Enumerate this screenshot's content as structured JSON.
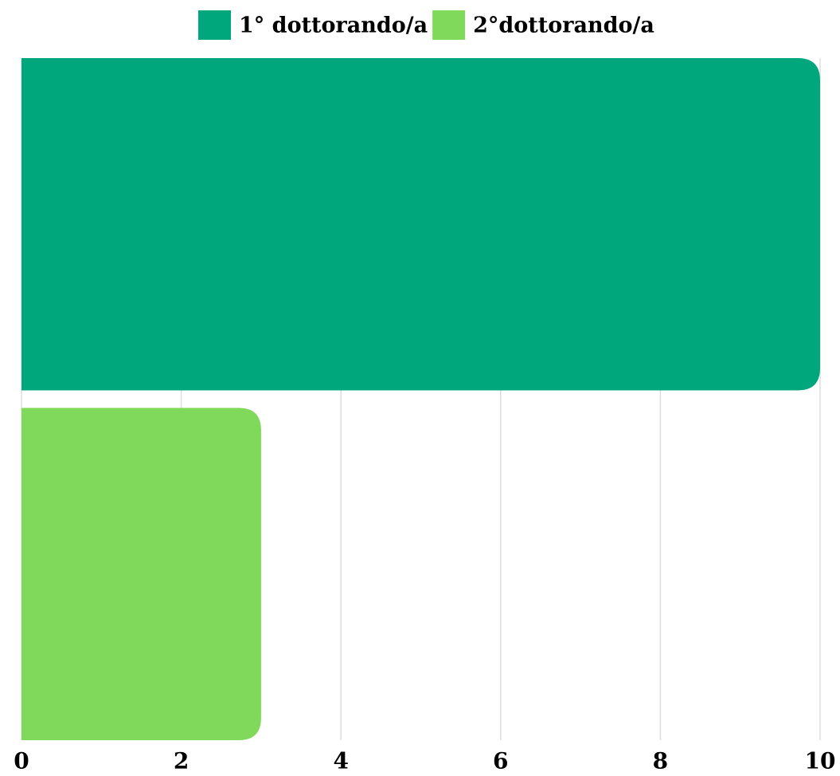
{
  "chart_data": {
    "type": "bar",
    "orientation": "horizontal",
    "categories": [
      null
    ],
    "series": [
      {
        "name": "1° dottorando/a",
        "color": "#00a77c",
        "values": [
          10
        ]
      },
      {
        "name": "2°dottorando/a",
        "color": "#80d95a",
        "values": [
          3
        ]
      }
    ],
    "xlim": [
      0,
      10
    ],
    "xticks": [
      0,
      2,
      4,
      6,
      8,
      10
    ],
    "grid": true,
    "legend": "top"
  }
}
